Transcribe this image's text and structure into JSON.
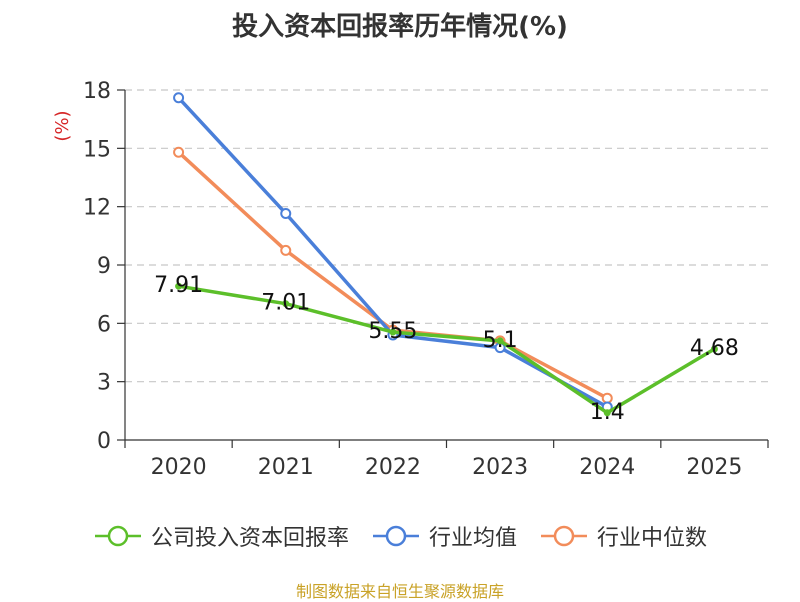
{
  "title": "投入资本回报率历年情况(%)",
  "footer": "制图数据来自恒生聚源数据库",
  "colors": {
    "company": "#5cbf2a",
    "industry_avg": "#4a7fd9",
    "industry_median": "#f28c5a",
    "grid": "#c8c8c8",
    "axis": "#333333",
    "unit": "#d62728"
  },
  "chart_data": {
    "type": "line",
    "title": "投入资本回报率历年情况(%)",
    "ylabel": "(%)",
    "xlabel": "",
    "categories": [
      "2020",
      "2021",
      "2022",
      "2023",
      "2024",
      "2025"
    ],
    "ylim": [
      0,
      18
    ],
    "yticks": [
      0,
      3,
      6,
      9,
      12,
      15,
      18
    ],
    "grid": true,
    "legend_position": "bottom",
    "series": [
      {
        "name": "公司投入资本回报率",
        "key": "company",
        "values": [
          7.91,
          7.01,
          5.55,
          5.1,
          1.4,
          4.68
        ],
        "labels": [
          "7.91",
          "7.01",
          "5.55",
          "5.1",
          "1.4",
          "4.68"
        ]
      },
      {
        "name": "行业均值",
        "key": "industry_avg",
        "values": [
          17.6,
          11.65,
          5.4,
          4.75,
          1.7,
          null
        ],
        "labels": null
      },
      {
        "name": "行业中位数",
        "key": "industry_median",
        "values": [
          14.8,
          9.75,
          5.65,
          5.1,
          2.15,
          null
        ],
        "labels": null
      }
    ]
  }
}
